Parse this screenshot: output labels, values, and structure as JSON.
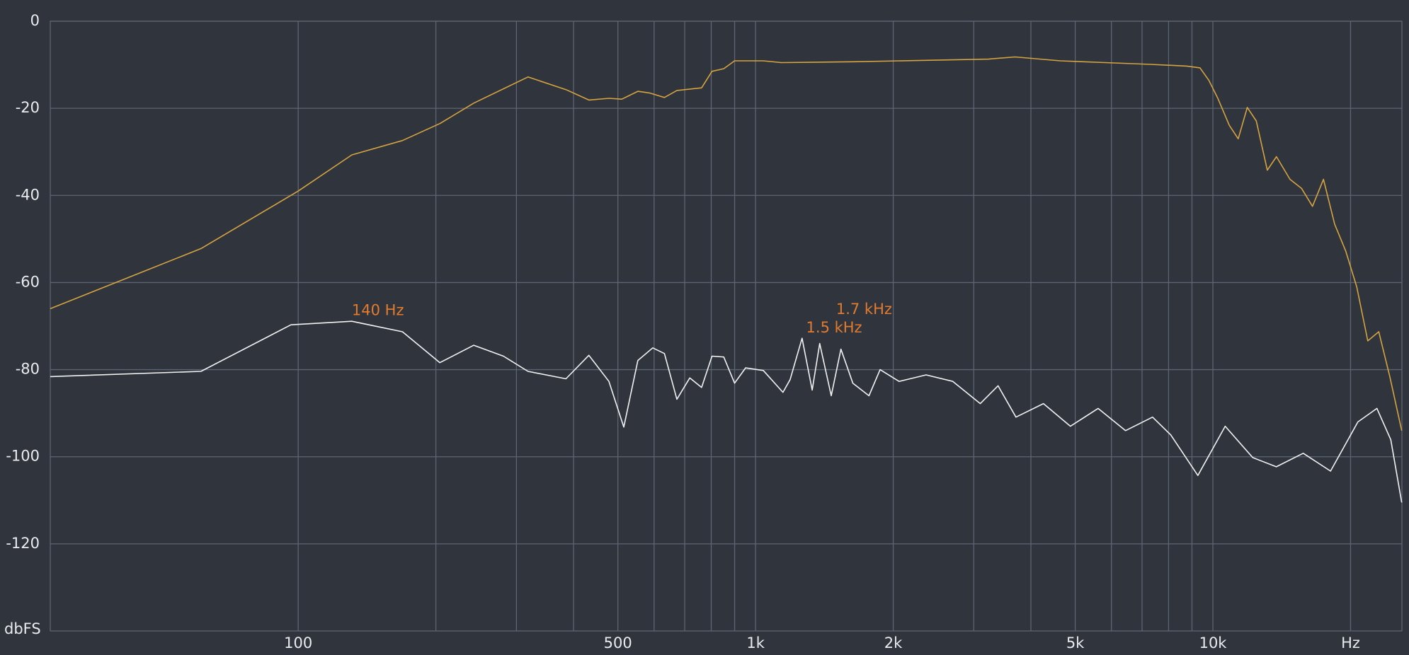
{
  "chart_data": {
    "type": "line",
    "xlabel": "Hz",
    "ylabel": "dbFS",
    "xscale": "log",
    "xlim": [
      28.7,
      25900
    ],
    "ylim": [
      -140,
      0
    ],
    "xticks": [
      100,
      500,
      {
        "value": 1000,
        "label": "1k"
      },
      {
        "value": 2000,
        "label": "2k"
      },
      {
        "value": 5000,
        "label": "5k"
      },
      {
        "value": 10000,
        "label": "10k"
      }
    ],
    "xminor": [
      200,
      300,
      400,
      600,
      700,
      800,
      900,
      3000,
      4000,
      6000,
      7000,
      8000,
      9000,
      20000
    ],
    "yticks": [
      0,
      -20,
      -40,
      -60,
      -80,
      -100,
      -120
    ],
    "grid": true,
    "series": [
      {
        "color": "#d6a440",
        "x": [
          28.7,
          61.3,
          100,
          131,
          169,
          204,
          242,
          318,
          385,
          432,
          478,
          510,
          553,
          588,
          632,
          673,
          762,
          803,
          852,
          900,
          1040,
          1138,
          1636,
          2570,
          3225,
          3693,
          4640,
          5820,
          7300,
          8760,
          9370,
          9800,
          10250,
          10860,
          11360,
          11890,
          12440,
          13150,
          13770,
          14740,
          15630,
          16510,
          17450,
          18460,
          19520,
          20630,
          21810,
          23050,
          24370,
          25870
        ],
        "values": [
          -66,
          -52.2,
          -39,
          -30.7,
          -27.4,
          -23.5,
          -18.8,
          -12.8,
          -15.7,
          -18.1,
          -17.7,
          -17.9,
          -16.1,
          -16.5,
          -17.5,
          -15.9,
          -15.3,
          -11.5,
          -10.9,
          -9.1,
          -9.1,
          -9.5,
          -9.3,
          -8.9,
          -8.7,
          -8.2,
          -9.1,
          -9.5,
          -9.9,
          -10.3,
          -10.7,
          -13.6,
          -17.7,
          -23.9,
          -27,
          -19.8,
          -22.9,
          -34.2,
          -31.1,
          -36.3,
          -38.4,
          -42.5,
          -36.3,
          -46.6,
          -52.8,
          -61,
          -73.4,
          -71.3,
          -81.6,
          -94
        ]
      },
      {
        "color": "#f2f2f2",
        "x": [
          28.7,
          61.3,
          96.4,
          131,
          169,
          204,
          242,
          281,
          318,
          385,
          432,
          478,
          515,
          553,
          596,
          632,
          673,
          718,
          762,
          803,
          852,
          900,
          951,
          1040,
          1148,
          1190,
          1264,
          1330,
          1381,
          1464,
          1537,
          1632,
          1770,
          1872,
          2060,
          2360,
          2700,
          3100,
          3390,
          3710,
          4260,
          4880,
          5610,
          6440,
          7380,
          8090,
          9270,
          10640,
          12220,
          13760,
          15760,
          18080,
          20750,
          22840,
          24490,
          25870
        ],
        "values": [
          -81.6,
          -80.4,
          -69.7,
          -68.9,
          -71.3,
          -78.4,
          -74.4,
          -76.9,
          -80.4,
          -82.1,
          -76.7,
          -82.7,
          -93.2,
          -77.9,
          -75,
          -76.3,
          -86.8,
          -81.9,
          -84.1,
          -76.9,
          -77.1,
          -83.1,
          -79.6,
          -80.2,
          -85.2,
          -82.3,
          -72.8,
          -84.7,
          -74,
          -86,
          -75.3,
          -83.1,
          -86,
          -80,
          -82.7,
          -81.2,
          -82.7,
          -87.8,
          -83.7,
          -90.9,
          -87.8,
          -93,
          -88.9,
          -94,
          -90.9,
          -95,
          -104.3,
          -93,
          -100.2,
          -102.3,
          -99.2,
          -103.3,
          -92,
          -88.9,
          -96.1,
          -110.5
        ]
      }
    ],
    "annotations": [
      {
        "text": "140 Hz",
        "x": 131,
        "y": -66.5
      },
      {
        "text": "1.5 kHz",
        "x": 1290,
        "y": -70.5
      },
      {
        "text": "1.7 kHz",
        "x": 1500,
        "y": -66.3
      }
    ],
    "annotation_color": "#e27b2e"
  }
}
